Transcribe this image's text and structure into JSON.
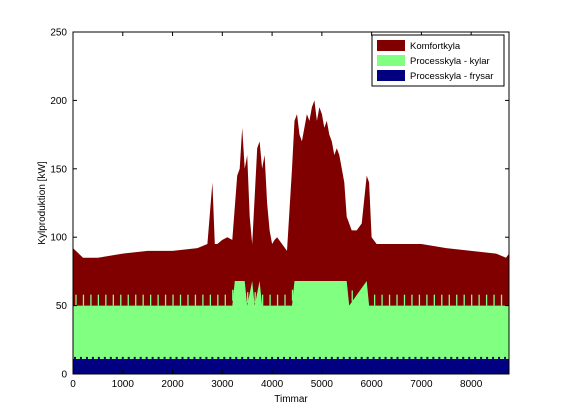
{
  "chart_data": {
    "type": "area",
    "stacked": true,
    "title": "",
    "xlabel": "Timmar",
    "ylabel": "Kylproduktion [kW]",
    "xlim": [
      0,
      8760
    ],
    "ylim": [
      0,
      250
    ],
    "xticks": [
      0,
      1000,
      2000,
      3000,
      4000,
      5000,
      6000,
      7000,
      8000
    ],
    "yticks": [
      0,
      50,
      100,
      150,
      200,
      250
    ],
    "grid": false,
    "legend_position": "top-right",
    "series": [
      {
        "name": "Komfortkyla",
        "color": "#800000",
        "note_shape": "upper envelope of stacked total",
        "x": [
          0,
          200,
          500,
          1000,
          1500,
          2000,
          2500,
          2700,
          2800,
          2850,
          2900,
          3000,
          3100,
          3200,
          3300,
          3350,
          3400,
          3450,
          3500,
          3550,
          3600,
          3650,
          3700,
          3750,
          3800,
          3850,
          3900,
          3950,
          4000,
          4050,
          4100,
          4200,
          4300,
          4400,
          4450,
          4500,
          4550,
          4600,
          4650,
          4700,
          4750,
          4800,
          4850,
          4900,
          4950,
          5000,
          5050,
          5100,
          5150,
          5200,
          5250,
          5300,
          5350,
          5400,
          5450,
          5500,
          5600,
          5700,
          5800,
          5900,
          5950,
          6000,
          6100,
          6200,
          6300,
          6500,
          7000,
          7500,
          8000,
          8500,
          8700,
          8760
        ],
        "values": [
          92,
          85,
          85,
          88,
          90,
          90,
          92,
          95,
          140,
          95,
          95,
          98,
          100,
          98,
          145,
          150,
          180,
          150,
          160,
          115,
          95,
          130,
          165,
          170,
          150,
          160,
          125,
          105,
          95,
          98,
          100,
          95,
          90,
          150,
          185,
          190,
          175,
          170,
          180,
          190,
          185,
          195,
          200,
          185,
          195,
          190,
          180,
          185,
          175,
          170,
          160,
          165,
          160,
          150,
          140,
          115,
          105,
          105,
          110,
          145,
          140,
          100,
          95,
          95,
          95,
          95,
          95,
          92,
          90,
          88,
          85,
          88
        ]
      },
      {
        "name": "Processkyla - kylar",
        "color": "#80ff80",
        "x": [
          0,
          3200,
          3250,
          3450,
          3500,
          3600,
          3650,
          3750,
          3800,
          4400,
          4450,
          5500,
          5550,
          5900,
          5950,
          8760
        ],
        "values": [
          50,
          50,
          68,
          68,
          50,
          68,
          50,
          68,
          50,
          50,
          68,
          68,
          50,
          68,
          50,
          50
        ]
      },
      {
        "name": "Processkyla - frysar",
        "color": "#000080",
        "x": [
          0,
          8760
        ],
        "values": [
          11,
          11
        ]
      }
    ],
    "legend": [
      {
        "label": "Komfortkyla",
        "color": "#800000"
      },
      {
        "label": "Processkyla - kylar",
        "color": "#80ff80"
      },
      {
        "label": "Processkyla - frysar",
        "color": "#000080"
      }
    ]
  }
}
